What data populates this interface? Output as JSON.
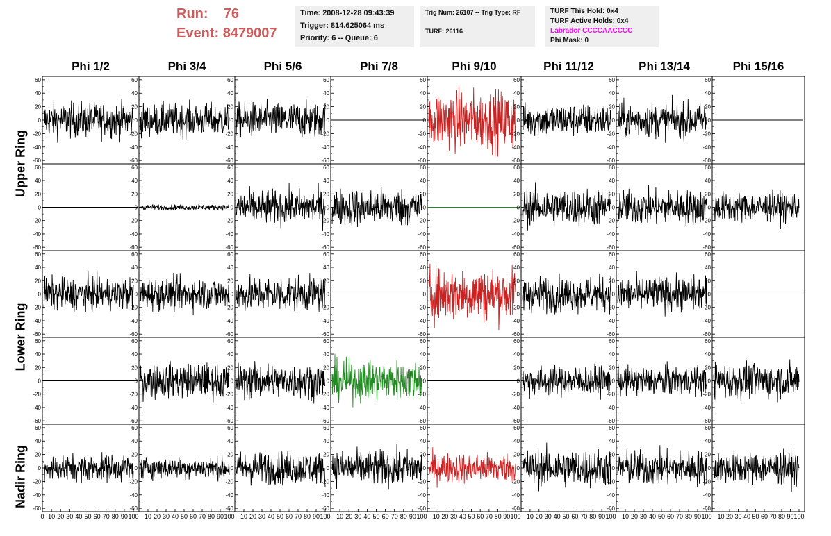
{
  "header": {
    "run_label": "Run:",
    "run_value": "76",
    "event_label": "Event:",
    "event_value": "8479007",
    "accent_color": "#cd5c5c"
  },
  "time_box": {
    "time": "Time: 2008-12-28 09:43:39",
    "trigger": "Trigger: 814.625064 ms",
    "priority": "Priority: 6 -- Queue: 6"
  },
  "trig_box": {
    "trig_line": "Trig Num: 26107 -- Trig Type: RF",
    "turf_line": "TURF: 26116"
  },
  "turf_box": {
    "this_hold": "TURF This Hold: 0x4",
    "active_holds": "TURF Active Holds: 0x4",
    "labrador": "Labrador CCCCAACCCC",
    "labrador_color": "#ff00ff",
    "phi_mask": "Phi Mask: 0"
  },
  "columns": [
    "Phi 1/2",
    "Phi 3/4",
    "Phi 5/6",
    "Phi 7/8",
    "Phi 9/10",
    "Phi 11/12",
    "Phi 13/14",
    "Phi 15/16"
  ],
  "rings": [
    "Upper Ring",
    "Lower Ring",
    "Nadir Ring"
  ],
  "chart_data": {
    "type": "line",
    "y_ticks": [
      "60",
      "40",
      "20",
      "0",
      "-20",
      "-40",
      "-60"
    ],
    "y_range": [
      -65,
      65
    ],
    "x_ticks": [
      "0",
      "10",
      "20",
      "30",
      "40",
      "50",
      "60",
      "70",
      "80",
      "90",
      "100"
    ],
    "x_range": [
      0,
      100
    ],
    "colors": {
      "normal": "#000000",
      "red": "#cc2222",
      "green": "#228b22"
    },
    "rows": [
      [
        {
          "state": "noise",
          "amp": 13,
          "color": "normal"
        },
        {
          "state": "noise",
          "amp": 12,
          "color": "normal"
        },
        {
          "state": "noise",
          "amp": 13,
          "color": "normal"
        },
        {
          "state": "flat",
          "color": "normal"
        },
        {
          "state": "noise",
          "amp": 22,
          "color": "red"
        },
        {
          "state": "noise",
          "amp": 12,
          "color": "normal"
        },
        {
          "state": "noise",
          "amp": 13,
          "color": "normal"
        },
        {
          "state": "flat",
          "color": "normal"
        }
      ],
      [
        {
          "state": "flat",
          "color": "normal"
        },
        {
          "state": "noise",
          "amp": 2,
          "color": "normal"
        },
        {
          "state": "noise",
          "amp": 13,
          "color": "normal"
        },
        {
          "state": "noise",
          "amp": 14,
          "color": "normal"
        },
        {
          "state": "flat",
          "color": "green"
        },
        {
          "state": "noise",
          "amp": 14,
          "color": "normal"
        },
        {
          "state": "noise",
          "amp": 13,
          "color": "normal"
        },
        {
          "state": "noise",
          "amp": 11,
          "color": "normal"
        }
      ],
      [
        {
          "state": "noise",
          "amp": 12,
          "color": "normal"
        },
        {
          "state": "noise",
          "amp": 12,
          "color": "normal"
        },
        {
          "state": "noise",
          "amp": 13,
          "color": "normal"
        },
        {
          "state": "flat",
          "color": "normal"
        },
        {
          "state": "noise",
          "amp": 20,
          "color": "red"
        },
        {
          "state": "noise",
          "amp": 13,
          "color": "normal"
        },
        {
          "state": "noise",
          "amp": 13,
          "color": "normal"
        },
        {
          "state": "flat",
          "color": "normal"
        }
      ],
      [
        {
          "state": "flat",
          "color": "normal"
        },
        {
          "state": "noise",
          "amp": 13,
          "color": "normal"
        },
        {
          "state": "noise",
          "amp": 13,
          "color": "normal"
        },
        {
          "state": "noise",
          "amp": 15,
          "color": "green"
        },
        {
          "state": "flat",
          "color": "normal"
        },
        {
          "state": "noise",
          "amp": 11,
          "color": "normal"
        },
        {
          "state": "noise",
          "amp": 11,
          "color": "normal"
        },
        {
          "state": "noise",
          "amp": 13,
          "color": "normal"
        }
      ],
      [
        {
          "state": "noise",
          "amp": 10,
          "color": "normal"
        },
        {
          "state": "noise",
          "amp": 8,
          "color": "normal"
        },
        {
          "state": "noise",
          "amp": 12,
          "color": "normal"
        },
        {
          "state": "noise",
          "amp": 13,
          "color": "normal"
        },
        {
          "state": "noise",
          "amp": 11,
          "color": "red"
        },
        {
          "state": "noise",
          "amp": 14,
          "color": "normal"
        },
        {
          "state": "noise",
          "amp": 13,
          "color": "normal"
        },
        {
          "state": "noise",
          "amp": 12,
          "color": "normal"
        }
      ]
    ]
  }
}
